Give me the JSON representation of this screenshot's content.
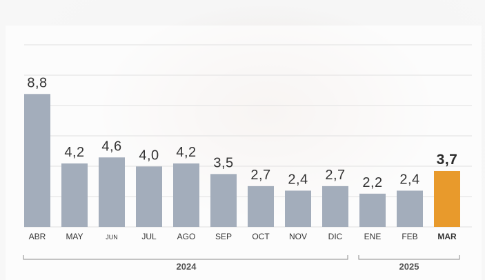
{
  "chart_data": {
    "type": "bar",
    "categories": [
      "ABR",
      "MAY",
      "JUN",
      "JUL",
      "AGO",
      "SEP",
      "OCT",
      "NOV",
      "DIC",
      "ENE",
      "FEB",
      "MAR"
    ],
    "values": [
      8.8,
      4.2,
      4.6,
      4.0,
      4.2,
      3.5,
      2.7,
      2.4,
      2.7,
      2.2,
      2.4,
      3.7
    ],
    "value_labels": [
      "8,8",
      "4,2",
      "4,6",
      "4,0",
      "4,2",
      "3,5",
      "2,7",
      "2,4",
      "2,7",
      "2,2",
      "2,4",
      "3,7"
    ],
    "highlight_index": 11,
    "year_groups": [
      {
        "label": "2024",
        "from": 0,
        "to": 8
      },
      {
        "label": "2025",
        "from": 9,
        "to": 11
      }
    ],
    "ylim": [
      0,
      10
    ],
    "grid": true,
    "colors": {
      "bar": "#a3adbb",
      "highlight": "#e89a2c",
      "grid": "#e1e1e1"
    }
  }
}
